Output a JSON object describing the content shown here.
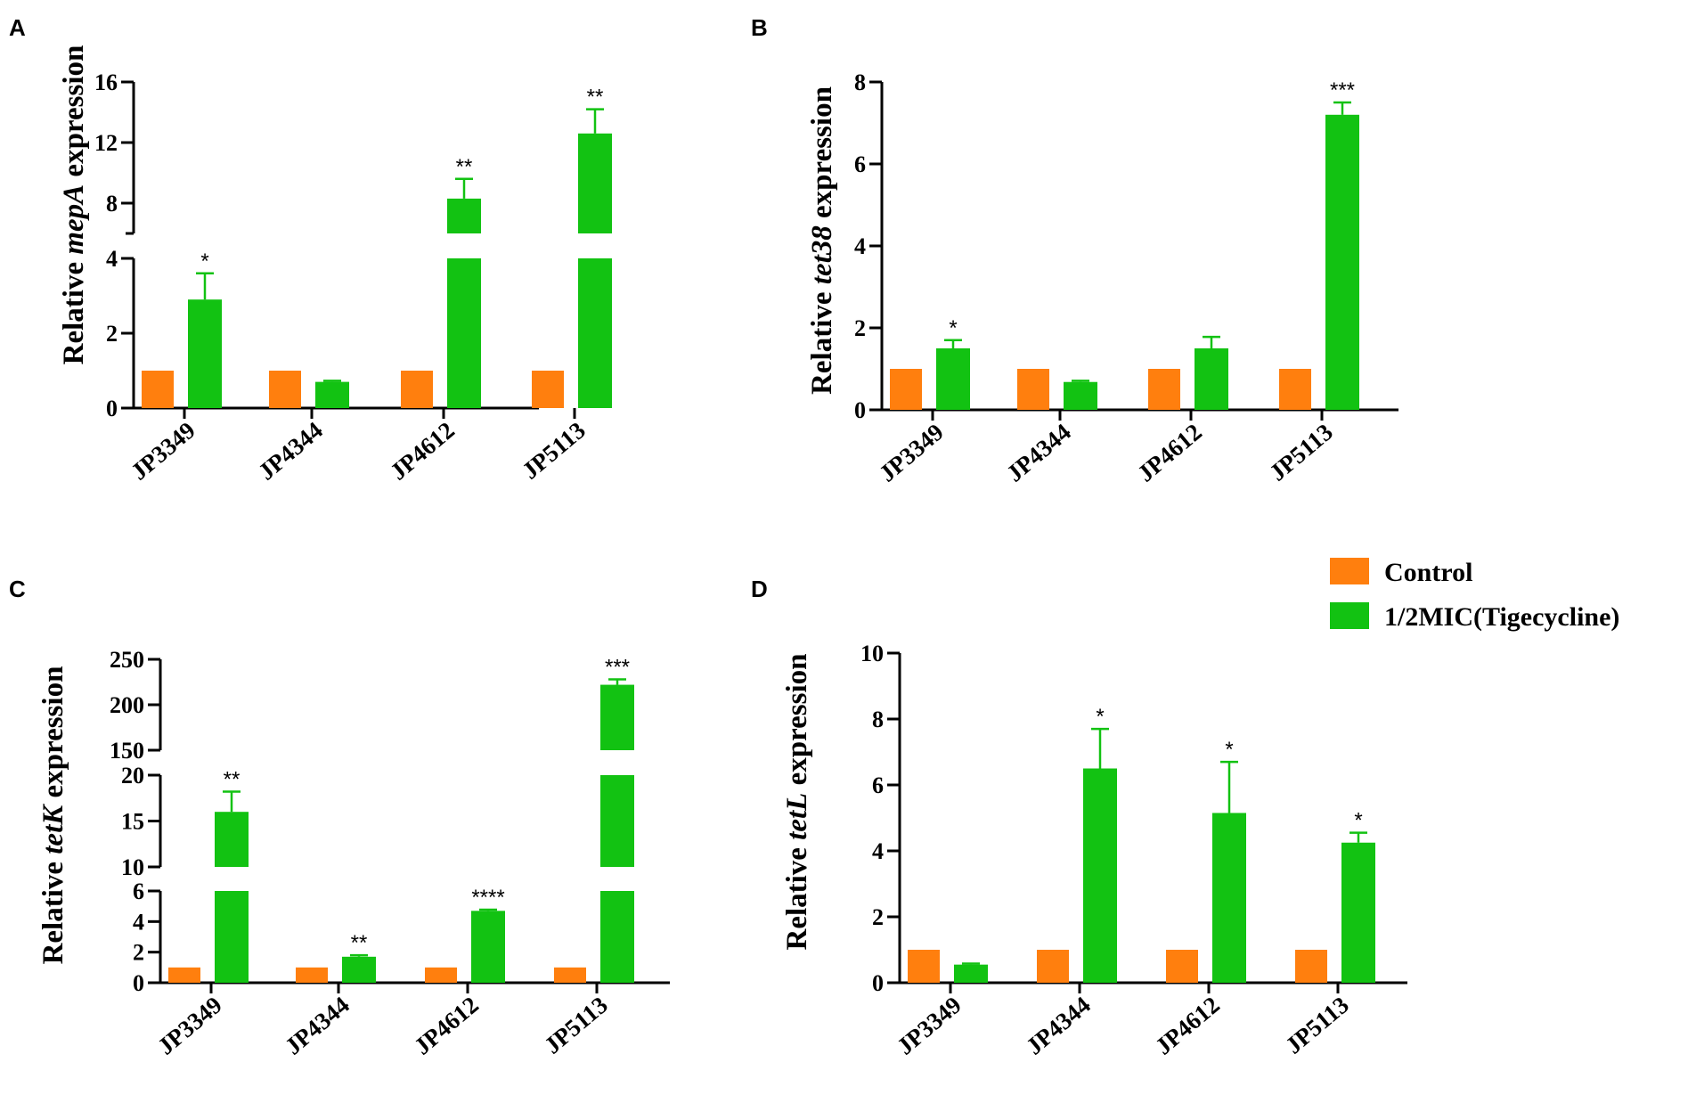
{
  "legend": {
    "entries": [
      {
        "label": "Control",
        "color": "#FF7F0E"
      },
      {
        "label": "1/2MIC(Tigecycline)",
        "color": "#12C212"
      }
    ]
  },
  "chart_data": [
    {
      "panel": "A",
      "type": "bar",
      "ylabel_pre": "Relative ",
      "ylabel_gene": "mepA",
      "ylabel_post": " expression",
      "categories": [
        "JP3349",
        "JP4344",
        "JP4612",
        "JP5113"
      ],
      "series": [
        {
          "name": "Control",
          "values": [
            1,
            1,
            1,
            1
          ],
          "errors": [
            0,
            0,
            0,
            0
          ]
        },
        {
          "name": "1/2MIC(Tigecycline)",
          "values": [
            2.9,
            0.7,
            8.3,
            12.6
          ],
          "errors": [
            0.7,
            0.03,
            1.3,
            1.6
          ]
        }
      ],
      "significance": [
        "*",
        "",
        "**",
        "**"
      ],
      "axis_segments": [
        {
          "range": [
            0,
            4
          ],
          "ticks": [
            0,
            2,
            4
          ]
        },
        {
          "range": [
            6,
            16
          ],
          "ticks": [
            8,
            12,
            16
          ]
        }
      ]
    },
    {
      "panel": "B",
      "type": "bar",
      "ylabel_pre": "Relative ",
      "ylabel_gene": "tet38",
      "ylabel_post": " expression",
      "categories": [
        "JP3349",
        "JP4344",
        "JP4612",
        "JP5113"
      ],
      "series": [
        {
          "name": "Control",
          "values": [
            1,
            1,
            1,
            1
          ],
          "errors": [
            0,
            0,
            0,
            0
          ]
        },
        {
          "name": "1/2MIC(Tigecycline)",
          "values": [
            1.5,
            0.68,
            1.5,
            7.2
          ],
          "errors": [
            0.2,
            0.03,
            0.28,
            0.3
          ]
        }
      ],
      "significance": [
        "*",
        "",
        "",
        "***"
      ],
      "axis_segments": [
        {
          "range": [
            0,
            8
          ],
          "ticks": [
            0,
            2,
            4,
            6,
            8
          ]
        }
      ]
    },
    {
      "panel": "C",
      "type": "bar",
      "ylabel_pre": "Relative ",
      "ylabel_gene": "tetK",
      "ylabel_post": " expression",
      "categories": [
        "JP3349",
        "JP4344",
        "JP4612",
        "JP5113"
      ],
      "series": [
        {
          "name": "Control",
          "values": [
            1,
            1,
            1,
            1
          ],
          "errors": [
            0,
            0,
            0,
            0
          ]
        },
        {
          "name": "1/2MIC(Tigecycline)",
          "values": [
            16,
            1.7,
            4.7,
            222
          ],
          "errors": [
            2.2,
            0.1,
            0.08,
            6
          ]
        }
      ],
      "significance": [
        "**",
        "**",
        "****",
        "***"
      ],
      "axis_segments": [
        {
          "range": [
            0,
            6
          ],
          "ticks": [
            0,
            2,
            4,
            6
          ]
        },
        {
          "range": [
            10,
            20
          ],
          "ticks": [
            10,
            15,
            20
          ]
        },
        {
          "range": [
            150,
            250
          ],
          "ticks": [
            150,
            200,
            250
          ]
        }
      ]
    },
    {
      "panel": "D",
      "type": "bar",
      "ylabel_pre": "Relative ",
      "ylabel_gene": "tetL",
      "ylabel_post": " expression",
      "categories": [
        "JP3349",
        "JP4344",
        "JP4612",
        "JP5113"
      ],
      "series": [
        {
          "name": "Control",
          "values": [
            1,
            1,
            1,
            1
          ],
          "errors": [
            0,
            0,
            0,
            0
          ]
        },
        {
          "name": "1/2MIC(Tigecycline)",
          "values": [
            0.55,
            6.5,
            5.15,
            4.25
          ],
          "errors": [
            0.03,
            1.2,
            1.55,
            0.3
          ]
        }
      ],
      "significance": [
        "",
        "*",
        "*",
        "*"
      ],
      "axis_segments": [
        {
          "range": [
            0,
            10
          ],
          "ticks": [
            0,
            2,
            4,
            6,
            8,
            10
          ]
        }
      ]
    }
  ]
}
